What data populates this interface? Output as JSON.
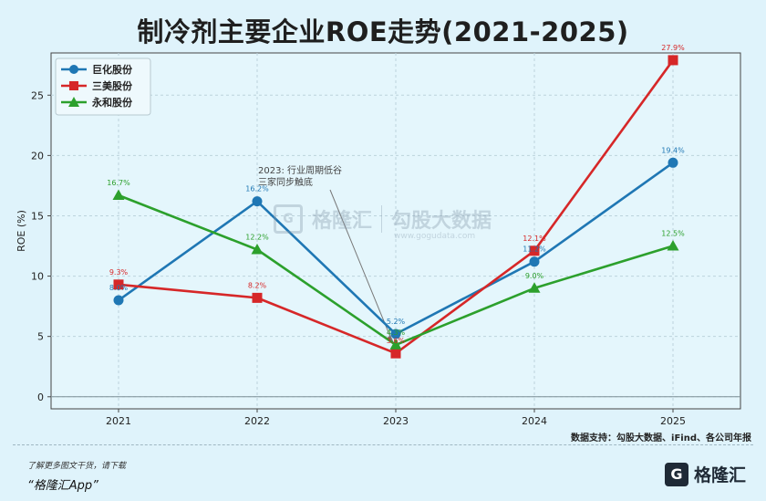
{
  "title": "制冷剂主要企业ROE走势(2021-2025)",
  "source_note": "数据支持：勾股大数据、iFind、各公司年报",
  "footer": {
    "note": "了解更多图文干货，请下载",
    "app": "“格隆汇App”"
  },
  "brand": {
    "logo_char": "G",
    "name": "格隆汇"
  },
  "watermark": {
    "logo_char": "G",
    "text_a": "格隆汇",
    "text_b": "勾股大数据",
    "url": "www.gogudata.com"
  },
  "chart_data": {
    "type": "line",
    "x": [
      "2021",
      "2022",
      "2023",
      "2024",
      "2025"
    ],
    "ylabel": "ROE (%)",
    "ylim": [
      -1,
      28.5
    ],
    "yticks": [
      0,
      5,
      10,
      15,
      20,
      25
    ],
    "grid": true,
    "legend_position": "top-left",
    "series": [
      {
        "name": "巨化股份",
        "color": "#1f77b4",
        "marker": "circle",
        "values": [
          8.0,
          16.2,
          5.2,
          11.2,
          19.4
        ],
        "labels": [
          "8.0%",
          "16.2%",
          "5.2%",
          "11.2%",
          "19.4%"
        ]
      },
      {
        "name": "三美股份",
        "color": "#d62728",
        "marker": "square",
        "values": [
          9.3,
          8.2,
          3.6,
          12.1,
          27.9
        ],
        "labels": [
          "9.3%",
          "8.2%",
          "3.6%",
          "12.1%",
          "27.9%"
        ]
      },
      {
        "name": "永和股份",
        "color": "#2ca02c",
        "marker": "triangle",
        "values": [
          16.7,
          12.2,
          4.3,
          9.0,
          12.5
        ],
        "labels": [
          "16.7%",
          "12.2%",
          "4.3%",
          "9.0%",
          "12.5%"
        ]
      }
    ],
    "annotation": {
      "lines": [
        "2023: 行业周期低谷",
        "三家同步触底"
      ],
      "x": "2023",
      "y": 4.3
    }
  }
}
